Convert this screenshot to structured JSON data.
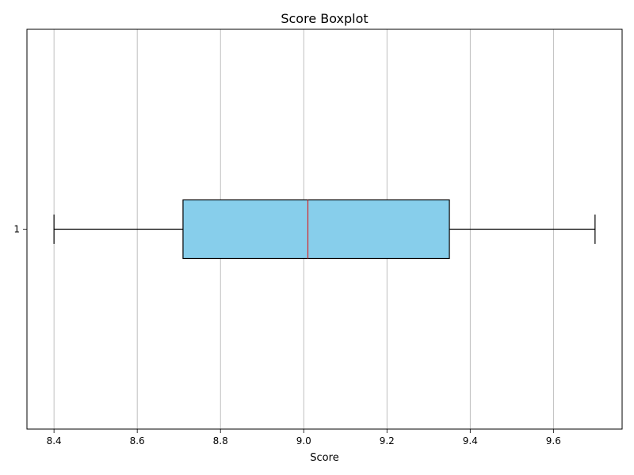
{
  "chart_data": {
    "type": "boxplot",
    "orientation": "horizontal",
    "title": "Score Boxplot",
    "xlabel": "Score",
    "ylabel": "",
    "xlim": [
      8.335,
      9.765
    ],
    "xticks": [
      8.4,
      8.6,
      8.8,
      9.0,
      9.2,
      9.4,
      9.6
    ],
    "xtick_labels": [
      "8.4",
      "8.6",
      "8.8",
      "9.0",
      "9.2",
      "9.4",
      "9.6"
    ],
    "categories": [
      "1"
    ],
    "boxes": [
      {
        "category": "1",
        "whisker_low": 8.4,
        "q1": 8.71,
        "median": 9.01,
        "q3": 9.35,
        "whisker_high": 9.7
      }
    ],
    "grid": "x",
    "box_color": "#87ceeb",
    "median_color": "#d62728"
  }
}
